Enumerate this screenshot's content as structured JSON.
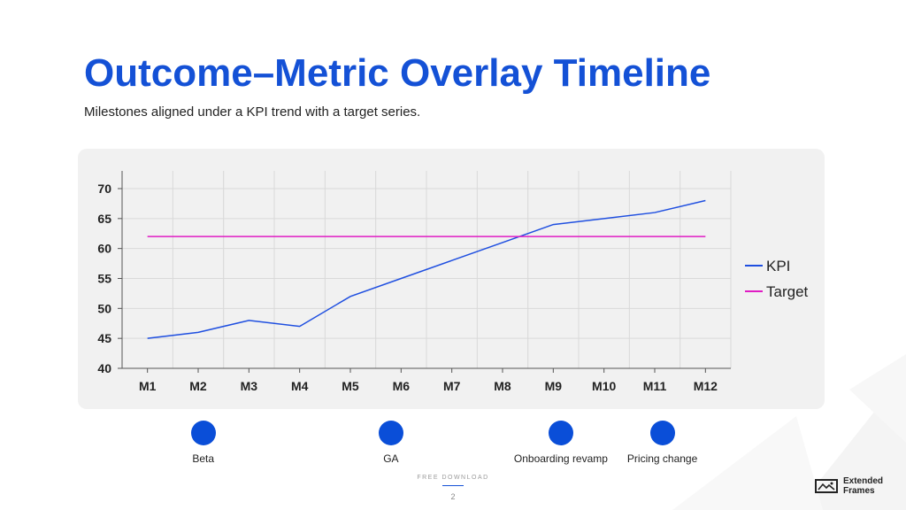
{
  "slide": {
    "title": "Outcome–Metric Overlay Timeline",
    "subtitle": "Milestones aligned under a KPI trend with a target series.",
    "footer_label": "FREE DOWNLOAD",
    "page_number": "2",
    "brand_name": "Extended Frames"
  },
  "colors": {
    "title": "#1451d6",
    "kpi_line": "#1f4fe0",
    "target_line": "#e01cc4",
    "milestone_dot": "#0a4ed8"
  },
  "chart_data": {
    "type": "line",
    "x": [
      "M1",
      "M2",
      "M3",
      "M4",
      "M5",
      "M6",
      "M7",
      "M8",
      "M9",
      "M10",
      "M11",
      "M12"
    ],
    "series": [
      {
        "name": "KPI",
        "values": [
          45,
          46,
          48,
          47,
          52,
          55,
          58,
          61,
          64,
          65,
          66,
          68
        ]
      },
      {
        "name": "Target",
        "values": [
          62,
          62,
          62,
          62,
          62,
          62,
          62,
          62,
          62,
          62,
          62,
          62
        ]
      }
    ],
    "ylim": [
      40,
      70
    ],
    "yticks": [
      40,
      45,
      50,
      55,
      60,
      65,
      70
    ],
    "grid": true,
    "legend": "right"
  },
  "milestones": [
    {
      "label": "Beta",
      "month": 2.1
    },
    {
      "label": "GA",
      "month": 5.8
    },
    {
      "label": "Onboarding revamp",
      "month": 9.15
    },
    {
      "label": "Pricing change",
      "month": 11.15
    }
  ]
}
